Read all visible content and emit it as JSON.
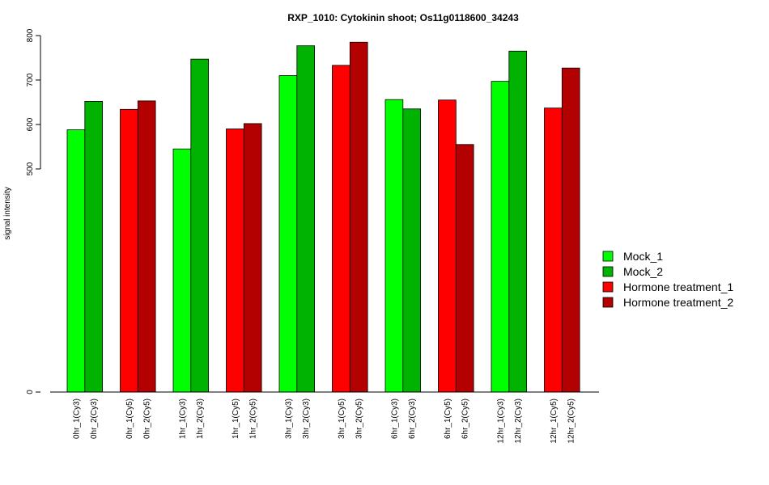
{
  "chart_data": {
    "type": "bar",
    "title": "RXP_1010: Cytokinin shoot; Os11g0118600_34243",
    "xlabel": "",
    "ylabel": "signal intensity",
    "y_ticks": [
      "0",
      "500",
      "600",
      "700",
      "800"
    ],
    "categories": [
      "0hr_1(Cy3)",
      "0hr_2(Cy3)",
      "0hr_1(Cy5)",
      "0hr_2(Cy5)",
      "1hr_1(Cy3)",
      "1hr_2(Cy3)",
      "1hr_1(Cy5)",
      "1hr_2(Cy5)",
      "3hr_1(Cy3)",
      "3hr_2(Cy3)",
      "3hr_1(Cy5)",
      "3hr_2(Cy5)",
      "6hr_1(Cy3)",
      "6hr_2(Cy3)",
      "6hr_1(Cy5)",
      "6hr_2(Cy5)",
      "12hr_1(Cy3)",
      "12hr_2(Cy3)",
      "12hr_1(Cy5)",
      "12hr_2(Cy5)"
    ],
    "values": [
      588,
      652,
      634,
      653,
      545,
      747,
      590,
      602,
      710,
      777,
      733,
      785,
      656,
      635,
      655,
      555,
      697,
      765,
      637,
      727
    ],
    "bar_series": [
      0,
      1,
      2,
      3,
      0,
      1,
      2,
      3,
      0,
      1,
      2,
      3,
      0,
      1,
      2,
      3,
      0,
      1,
      2,
      3
    ],
    "series": [
      {
        "name": "Mock_1",
        "color": "#00ff00"
      },
      {
        "name": "Mock_2",
        "color": "#00b300"
      },
      {
        "name": "Hormone treatment_1",
        "color": "#ff0000"
      },
      {
        "name": "Hormone treatment_2",
        "color": "#b30000"
      }
    ],
    "ylim": [
      0,
      800
    ],
    "y_axis_break": "broken axis: 0 at bottom, 500-800 linear",
    "grid": false,
    "legend_position": "right"
  }
}
